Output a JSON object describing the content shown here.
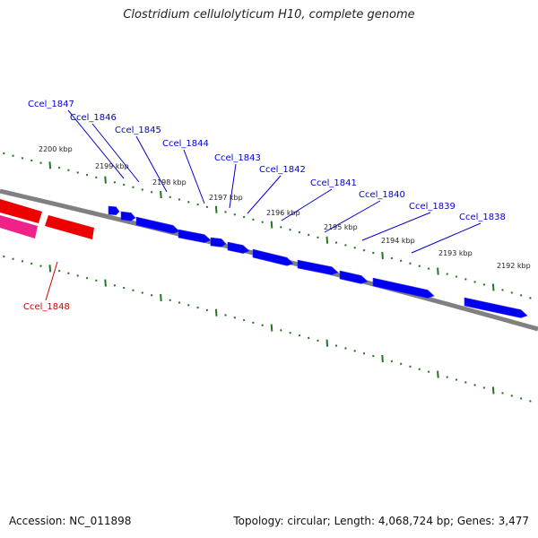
{
  "title": "Clostridium cellulolyticum H10, complete genome",
  "footer": {
    "accession": "Accession: NC_011898",
    "summary": "Topology: circular; Length: 4,068,724 bp; Genes: 3,477"
  },
  "colors": {
    "forward_gene": "#0000ee",
    "reverse_gene": "#ee0000",
    "reverse_gene_alt": "#ee2288",
    "backbone": "#808080",
    "ticks": "#227722",
    "forward_label": "#0000cc",
    "reverse_label": "#cc0000"
  },
  "scale": {
    "unit_kbp_per_label": 1,
    "labels": [
      {
        "kbp": 2200,
        "text": "2200 kbp"
      },
      {
        "kbp": 2199,
        "text": "2199 kbp"
      },
      {
        "kbp": 2198,
        "text": "2198 kbp"
      },
      {
        "kbp": 2197,
        "text": "2197 kbp"
      },
      {
        "kbp": 2196,
        "text": "2196 kbp"
      },
      {
        "kbp": 2195,
        "text": "2195 kbp"
      },
      {
        "kbp": 2194,
        "text": "2194 kbp"
      },
      {
        "kbp": 2193,
        "text": "2193 kbp"
      },
      {
        "kbp": 2192,
        "text": "2192 kbp"
      }
    ]
  },
  "genes": [
    {
      "name": "Ccel_1847",
      "strand": "+"
    },
    {
      "name": "Ccel_1846",
      "strand": "+"
    },
    {
      "name": "Ccel_1845",
      "strand": "+"
    },
    {
      "name": "Ccel_1844",
      "strand": "+"
    },
    {
      "name": "Ccel_1843",
      "strand": "+"
    },
    {
      "name": "Ccel_1842",
      "strand": "+"
    },
    {
      "name": "Ccel_1841",
      "strand": "+"
    },
    {
      "name": "Ccel_1840",
      "strand": "+"
    },
    {
      "name": "Ccel_1839",
      "strand": "+"
    },
    {
      "name": "Ccel_1838",
      "strand": "+"
    },
    {
      "name": "Ccel_1848",
      "strand": "-"
    }
  ]
}
